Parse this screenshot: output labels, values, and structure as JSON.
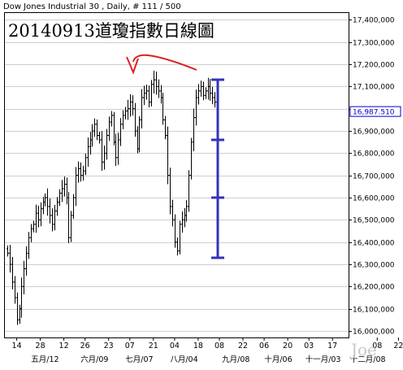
{
  "header": "Dow Jones Industrial 30 , Daily, # 111 / 500",
  "watermark": "Joe",
  "chart_data": {
    "type": "ohlc",
    "title": "20140913道瓊指數日線圖",
    "ylim": [
      15950,
      17500
    ],
    "y_ticks": [
      {
        "value": 16000,
        "label": "16,000,000"
      },
      {
        "value": 16100,
        "label": "16,100,000"
      },
      {
        "value": 16200,
        "label": "16,200,000"
      },
      {
        "value": 16300,
        "label": "16,300,000"
      },
      {
        "value": 16400,
        "label": "16,400,000"
      },
      {
        "value": 16500,
        "label": "16,500,000"
      },
      {
        "value": 16600,
        "label": "16,600,000"
      },
      {
        "value": 16700,
        "label": "16,700,000"
      },
      {
        "value": 16800,
        "label": "16,800,000"
      },
      {
        "value": 16900,
        "label": "16,900,000"
      },
      {
        "value": 17000,
        "label": "17,000,000"
      },
      {
        "value": 17100,
        "label": "17,100,000"
      },
      {
        "value": 17200,
        "label": "17,200,000"
      },
      {
        "value": 17300,
        "label": "17,300,000"
      },
      {
        "value": 17400,
        "label": "17,400,000"
      }
    ],
    "last_value": {
      "value": 16987.51,
      "label": "16,987.510"
    },
    "x_ticks": [
      {
        "i": 4,
        "label": "14"
      },
      {
        "i": 14,
        "label": "28"
      },
      {
        "i": 24,
        "label": "12"
      },
      {
        "i": 33,
        "label": "26"
      },
      {
        "i": 43,
        "label": "23"
      },
      {
        "i": 52,
        "label": "07"
      },
      {
        "i": 62,
        "label": "21"
      },
      {
        "i": 71,
        "label": "04"
      },
      {
        "i": 81,
        "label": "18"
      },
      {
        "i": 90,
        "label": "08"
      },
      {
        "i": 100,
        "label": "22"
      },
      {
        "i": 109,
        "label": "06"
      },
      {
        "i": 119,
        "label": "20"
      },
      {
        "i": 128,
        "label": "03"
      },
      {
        "i": 138,
        "label": "17"
      },
      {
        "i": 157,
        "label": "08"
      },
      {
        "i": 166,
        "label": "22"
      }
    ],
    "month_labels": [
      {
        "i": 16,
        "label": "五月/12"
      },
      {
        "i": 37,
        "label": "六月/09"
      },
      {
        "i": 56,
        "label": "七月/07"
      },
      {
        "i": 75,
        "label": "八月/04"
      },
      {
        "i": 97,
        "label": "九月/08"
      },
      {
        "i": 115,
        "label": "十月/06"
      },
      {
        "i": 134,
        "label": "十一月/03"
      },
      {
        "i": 153,
        "label": "十二月/08"
      }
    ],
    "closes": [
      16350,
      16300,
      16220,
      16150,
      16050,
      16100,
      16200,
      16280,
      16350,
      16420,
      16460,
      16480,
      16530,
      16500,
      16550,
      16580,
      16600,
      16560,
      16520,
      16480,
      16540,
      16580,
      16620,
      16640,
      16660,
      16600,
      16420,
      16520,
      16600,
      16700,
      16730,
      16700,
      16720,
      16780,
      16830,
      16860,
      16900,
      16930,
      16880,
      16860,
      16760,
      16800,
      16880,
      16940,
      16970,
      16850,
      16780,
      16860,
      16930,
      16970,
      16990,
      17000,
      17030,
      17000,
      16900,
      16820,
      16950,
      17050,
      17070,
      17080,
      17030,
      17110,
      17130,
      17100,
      17080,
      17050,
      16950,
      16880,
      16700,
      16560,
      16500,
      16400,
      16360,
      16480,
      16500,
      16520,
      16560,
      16700,
      16850,
      16960,
      17050,
      17080,
      17100,
      17060,
      17080,
      17100,
      17070,
      17050,
      17030,
      17000
    ]
  }
}
